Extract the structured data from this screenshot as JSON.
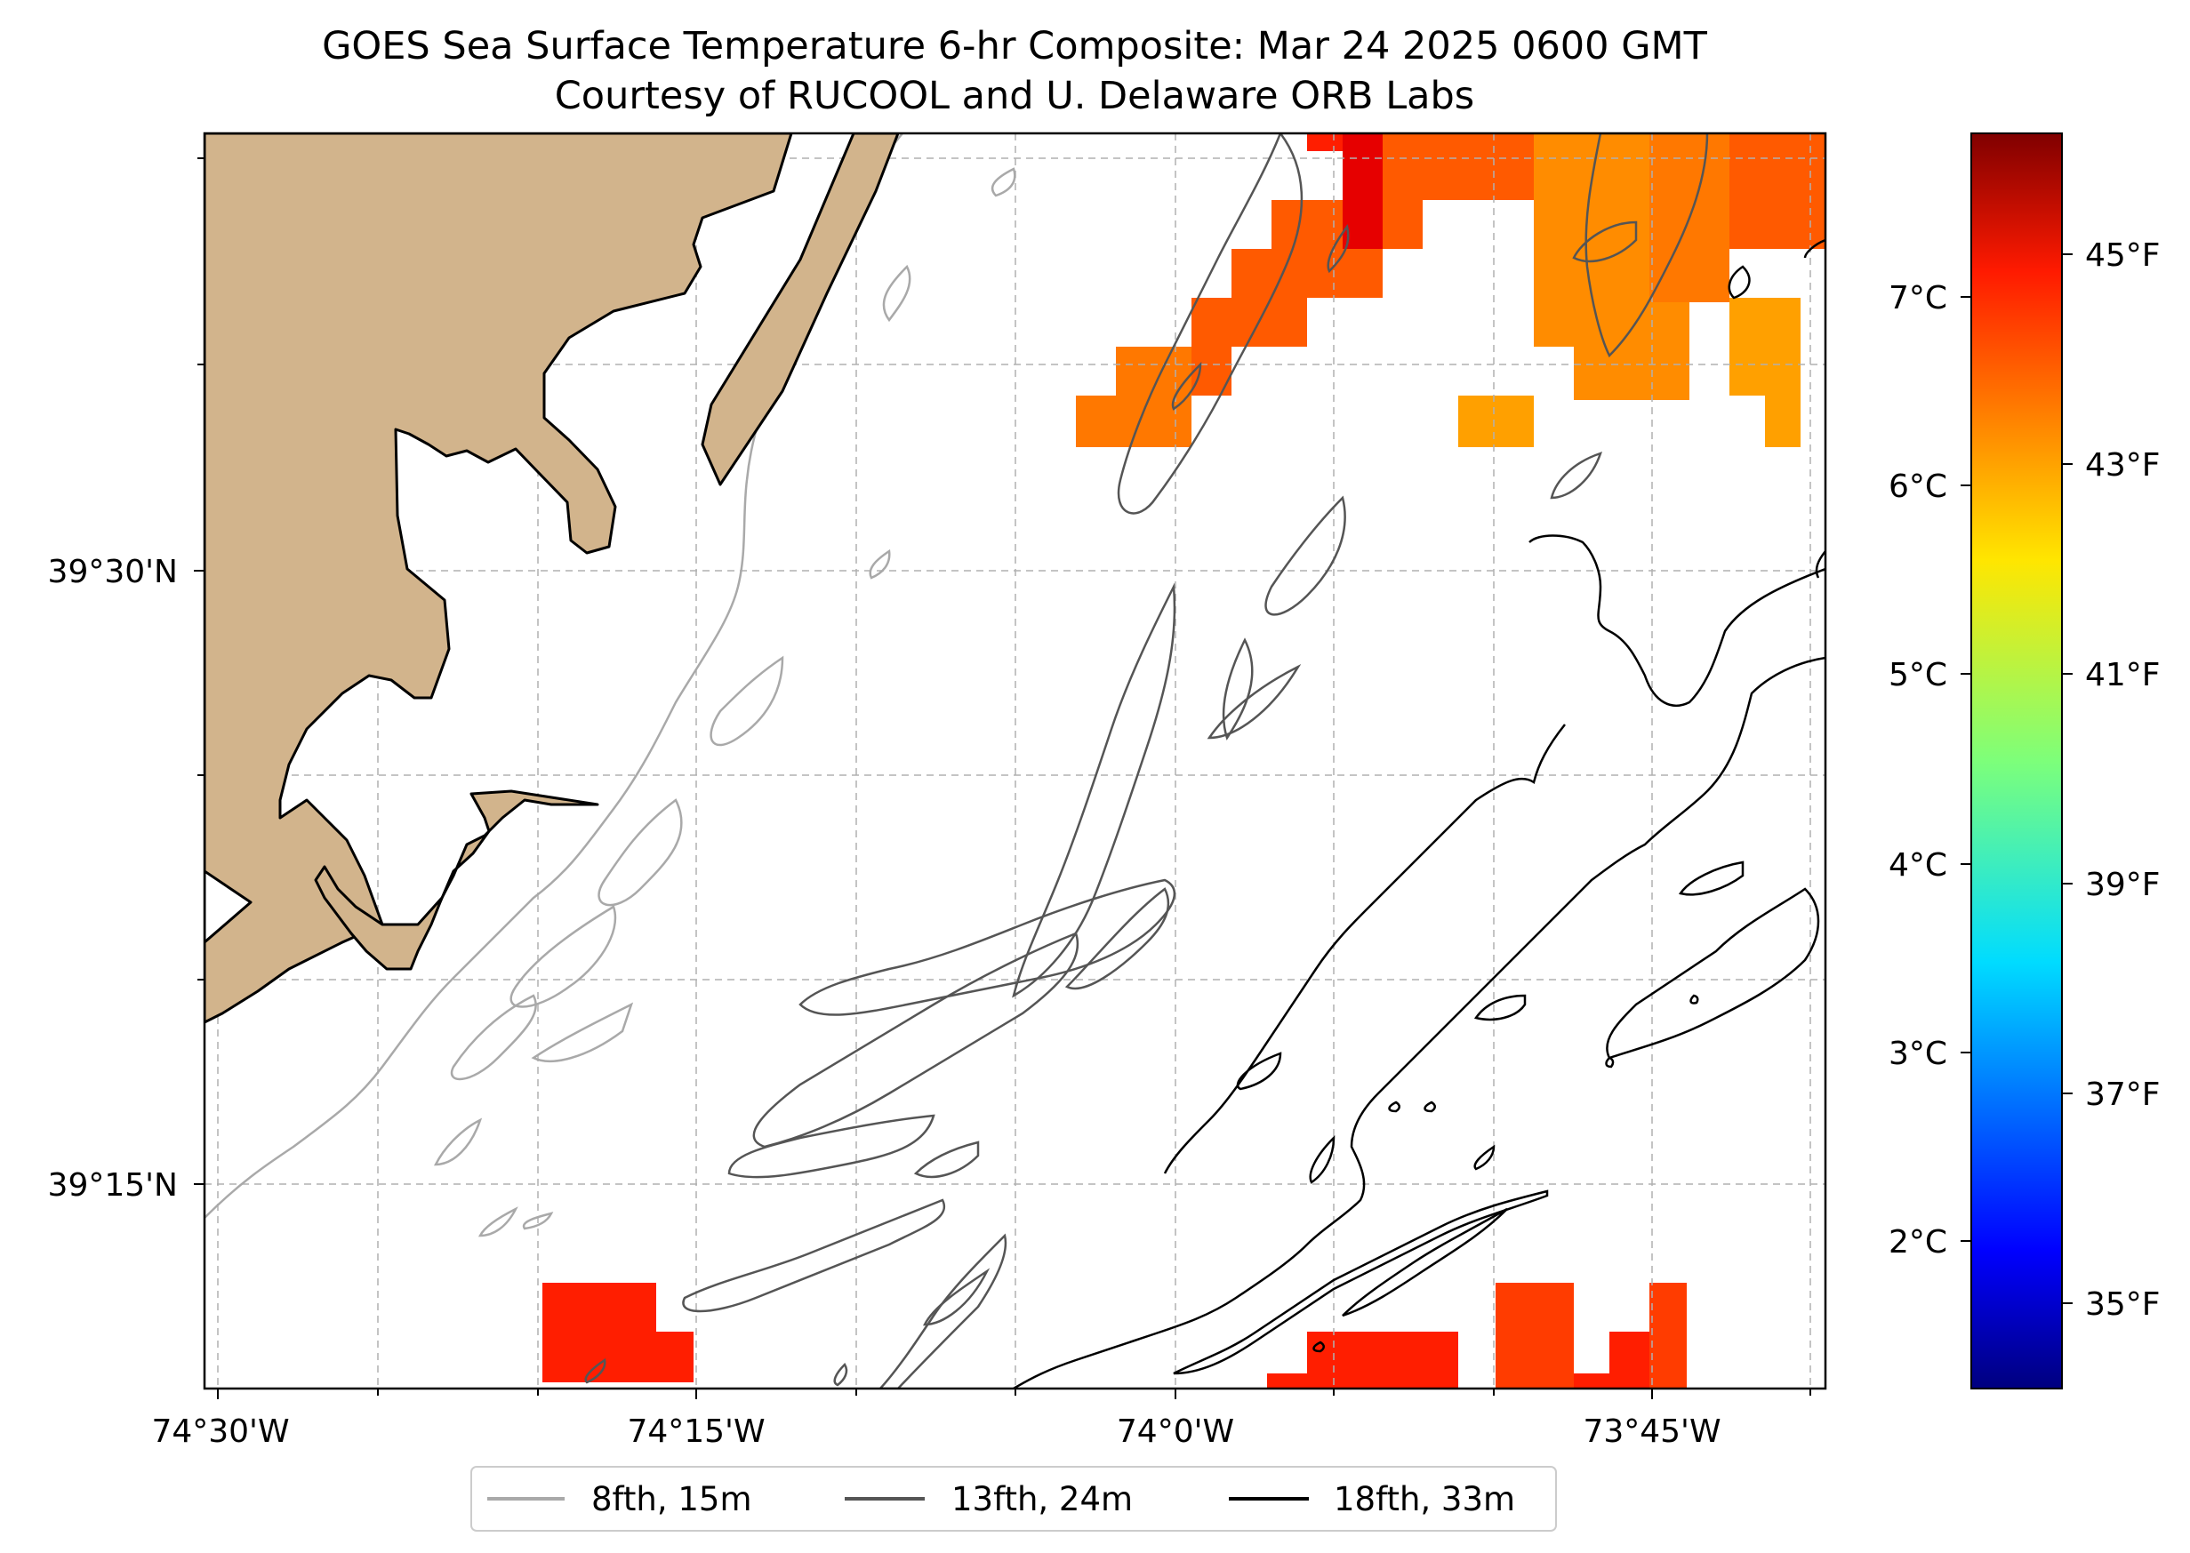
{
  "title": {
    "line1": "GOES Sea Surface Temperature 6-hr Composite: Mar 24 2025 0600 GMT",
    "line2": "Courtesy of RUCOOL and U. Delaware ORB Labs"
  },
  "map": {
    "lon_ticks": [
      "74°30'W",
      "74°15'W",
      "74°0'W",
      "73°45'W"
    ],
    "lat_ticks": [
      "39°30'N",
      "39°15'N"
    ],
    "land_color": "#d2b48c",
    "gridlines": "dashed grey"
  },
  "legend": {
    "items": [
      {
        "label": "8fth, 15m",
        "color": "#a9a9a9"
      },
      {
        "label": "13fth, 24m",
        "color": "#555555"
      },
      {
        "label": "18fth, 33m",
        "color": "#000000"
      }
    ]
  },
  "colorbar": {
    "colormap": "jet",
    "celsius_ticks": [
      "2°C",
      "3°C",
      "4°C",
      "5°C",
      "6°C",
      "7°C"
    ],
    "fahrenheit_ticks": [
      "35°F",
      "37°F",
      "39°F",
      "41°F",
      "43°F",
      "45°F"
    ]
  },
  "sst_colors": {
    "red": "#ff1e00",
    "red_orange": "#ff3c00",
    "dark_red": "#e60000",
    "orange_red": "#ff5a00",
    "orange": "#ff7800",
    "orange_light": "#ff8c00",
    "amber": "#ffa000"
  }
}
